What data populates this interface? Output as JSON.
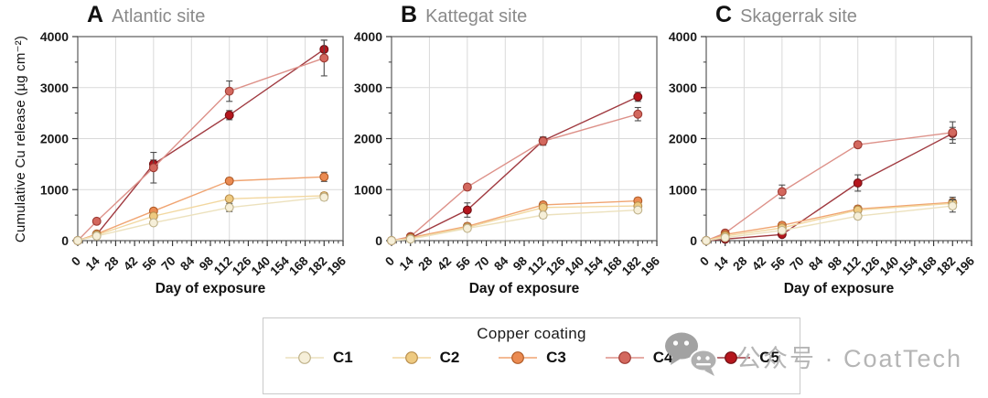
{
  "figure": {
    "type": "three-panel line chart",
    "background": "#ffffff"
  },
  "chart_data": [
    {
      "type": "line",
      "panel_letter": "A",
      "title": "Atlantic site",
      "xlabel": "Day of exposure",
      "ylabel": "Cumulative Cu release (µg cm⁻²)",
      "xlim": [
        0,
        196
      ],
      "ylim": [
        0,
        4000
      ],
      "xticks": [
        0,
        14,
        28,
        42,
        56,
        70,
        84,
        98,
        112,
        126,
        140,
        154,
        168,
        182,
        196
      ],
      "yticks": [
        0,
        1000,
        2000,
        3000,
        4000
      ],
      "grid_x": [
        28,
        56,
        84,
        112,
        140,
        168
      ],
      "grid_y": [
        1000,
        2000,
        3000
      ],
      "x": [
        0,
        14,
        56,
        112,
        182
      ],
      "series": [
        {
          "name": "C1",
          "values": [
            0,
            90,
            350,
            650,
            850
          ],
          "errors": [
            0,
            0,
            40,
            80,
            60
          ]
        },
        {
          "name": "C2",
          "values": [
            0,
            110,
            480,
            820,
            880
          ],
          "errors": [
            0,
            0,
            40,
            50,
            60
          ]
        },
        {
          "name": "C3",
          "values": [
            0,
            130,
            580,
            1170,
            1250
          ],
          "errors": [
            0,
            0,
            50,
            60,
            90
          ]
        },
        {
          "name": "C4",
          "values": [
            0,
            380,
            1430,
            2930,
            3580
          ],
          "errors": [
            0,
            30,
            300,
            200,
            350
          ]
        },
        {
          "name": "C5",
          "values": [
            0,
            120,
            1500,
            2460,
            3750
          ],
          "errors": [
            0,
            0,
            80,
            90,
            180
          ]
        }
      ]
    },
    {
      "type": "line",
      "panel_letter": "B",
      "title": "Kattegat site",
      "xlabel": "Day of exposure",
      "ylabel": "Cumulative Cu release (µg cm⁻²)",
      "xlim": [
        0,
        196
      ],
      "ylim": [
        0,
        4000
      ],
      "xticks": [
        0,
        14,
        28,
        42,
        56,
        70,
        84,
        98,
        112,
        126,
        140,
        154,
        168,
        182,
        196
      ],
      "yticks": [
        0,
        1000,
        2000,
        3000,
        4000
      ],
      "grid_x": [
        28,
        56,
        84,
        112,
        140,
        168
      ],
      "grid_y": [
        1000,
        2000,
        3000
      ],
      "x": [
        0,
        14,
        56,
        112,
        182
      ],
      "series": [
        {
          "name": "C1",
          "values": [
            0,
            30,
            240,
            500,
            600
          ],
          "errors": [
            0,
            0,
            40,
            60,
            50
          ]
        },
        {
          "name": "C2",
          "values": [
            0,
            40,
            260,
            650,
            680
          ],
          "errors": [
            0,
            0,
            40,
            50,
            50
          ]
        },
        {
          "name": "C3",
          "values": [
            0,
            60,
            280,
            700,
            780
          ],
          "errors": [
            0,
            0,
            60,
            60,
            60
          ]
        },
        {
          "name": "C4",
          "values": [
            0,
            80,
            1050,
            1950,
            2480
          ],
          "errors": [
            0,
            0,
            60,
            80,
            130
          ]
        },
        {
          "name": "C5",
          "values": [
            0,
            50,
            600,
            1960,
            2820
          ],
          "errors": [
            0,
            0,
            140,
            70,
            90
          ]
        }
      ]
    },
    {
      "type": "line",
      "panel_letter": "C",
      "title": "Skagerrak site",
      "xlabel": "Day of exposure",
      "ylabel": "Cumulative Cu release (µg cm⁻²)",
      "xlim": [
        0,
        196
      ],
      "ylim": [
        0,
        4000
      ],
      "xticks": [
        0,
        14,
        28,
        42,
        56,
        70,
        84,
        98,
        112,
        126,
        140,
        154,
        168,
        182,
        196
      ],
      "yticks": [
        0,
        1000,
        2000,
        3000,
        4000
      ],
      "grid_x": [
        28,
        56,
        84,
        112,
        140,
        168
      ],
      "grid_y": [
        1000,
        2000,
        3000
      ],
      "x": [
        0,
        14,
        56,
        112,
        182
      ],
      "series": [
        {
          "name": "C1",
          "values": [
            0,
            60,
            200,
            480,
            680
          ],
          "errors": [
            0,
            0,
            40,
            60,
            120
          ]
        },
        {
          "name": "C2",
          "values": [
            0,
            90,
            250,
            600,
            730
          ],
          "errors": [
            0,
            20,
            50,
            50,
            80
          ]
        },
        {
          "name": "C3",
          "values": [
            0,
            120,
            300,
            620,
            750
          ],
          "errors": [
            0,
            30,
            60,
            60,
            100
          ]
        },
        {
          "name": "C4",
          "values": [
            0,
            150,
            960,
            1880,
            2120
          ],
          "errors": [
            0,
            40,
            130,
            60,
            210
          ]
        },
        {
          "name": "C5",
          "values": [
            0,
            30,
            120,
            1130,
            2100
          ],
          "errors": [
            0,
            0,
            30,
            160,
            120
          ]
        }
      ]
    }
  ],
  "colors": {
    "C1": {
      "line": "#ece1bd",
      "fill": "#f6efd9",
      "stroke": "#bfb28a"
    },
    "C2": {
      "line": "#f2d79f",
      "fill": "#eeca81",
      "stroke": "#b98f4e"
    },
    "C3": {
      "line": "#f0a471",
      "fill": "#eb8b52",
      "stroke": "#b15c28"
    },
    "C4": {
      "line": "#dd9189",
      "fill": "#d3685e",
      "stroke": "#9e3b34"
    },
    "C5": {
      "line": "#a03a40",
      "fill": "#b5161d",
      "stroke": "#711014"
    },
    "error_bar": "#4d4d4d",
    "grid": "#d9d9d9",
    "frame": "#666666",
    "tick": "#3a3a3a"
  },
  "legend": {
    "title": "Copper coating",
    "items": [
      "C1",
      "C2",
      "C3",
      "C4",
      "C5"
    ]
  },
  "watermark": {
    "icon": "wechat-icon",
    "text": "公众号 · CoatTech"
  }
}
